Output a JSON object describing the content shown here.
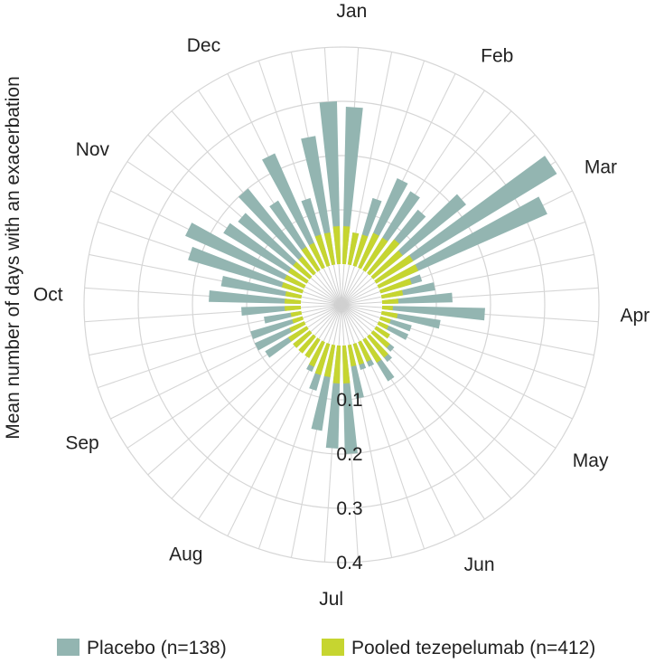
{
  "chart_data": {
    "type": "polar-bar",
    "ylabel": "Mean number of days with an exacerbation",
    "r_ticks": [
      0.1,
      0.2,
      0.3,
      0.4
    ],
    "r_lim": [
      0,
      0.4
    ],
    "months": [
      "Jan",
      "Feb",
      "Mar",
      "Apr",
      "May",
      "Jun",
      "Jul",
      "Aug",
      "Sep",
      "Oct",
      "Nov",
      "Dec"
    ],
    "bins_per_month": 4,
    "series": [
      {
        "name": "Placebo (n=138)",
        "color": "#93b5b1",
        "values": [
          0.29,
          0.06,
          0.13,
          0.18,
          0.17,
          0.15,
          0.22,
          0.39,
          0.34,
          0.08,
          0.1,
          0.13,
          0.19,
          0.11,
          0.06,
          0.06,
          0.03,
          0.05,
          0.06,
          0.09,
          0.05,
          0.05,
          0.1,
          0.2,
          0.19,
          0.16,
          0.09,
          0.06,
          0.03,
          0.02,
          0.04,
          0.09,
          0.1,
          0.1,
          0.07,
          0.11,
          0.17,
          0.15,
          0.22,
          0.24,
          0.18,
          0.17,
          0.2,
          0.15,
          0.23,
          0.13,
          0.24,
          0.3
        ]
      },
      {
        "name": "Pooled tezepelumab (n=412)",
        "color": "#c6d530",
        "values": [
          0.07,
          0.06,
          0.06,
          0.07,
          0.07,
          0.08,
          0.07,
          0.08,
          0.08,
          0.06,
          0.04,
          0.03,
          0.02,
          0.03,
          0.02,
          0.02,
          0.03,
          0.04,
          0.05,
          0.05,
          0.04,
          0.04,
          0.04,
          0.07,
          0.07,
          0.06,
          0.06,
          0.05,
          0.04,
          0.04,
          0.04,
          0.04,
          0.03,
          0.02,
          0.02,
          0.03,
          0.03,
          0.03,
          0.04,
          0.04,
          0.04,
          0.04,
          0.04,
          0.05,
          0.05,
          0.06,
          0.06,
          0.07
        ]
      }
    ],
    "legend": {
      "position": "bottom",
      "items": [
        {
          "label": "Placebo (n=138)",
          "color": "#93b5b1"
        },
        {
          "label": "Pooled tezepelumab (n=412)",
          "color": "#c6d530"
        }
      ]
    }
  }
}
